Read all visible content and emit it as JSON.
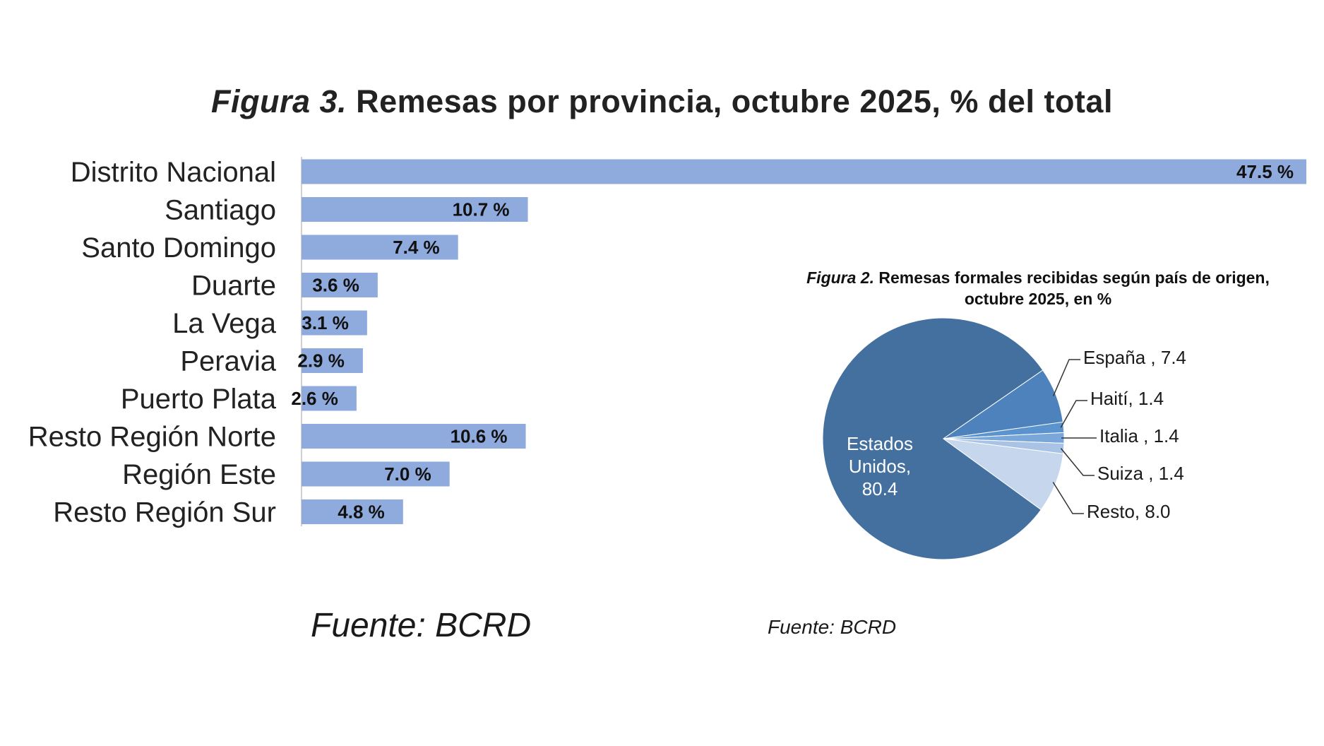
{
  "figure3": {
    "title_num": "Figura 3.",
    "title_rest": " Remesas por provincia, octubre 2025, % del total",
    "source": "Fuente: BCRD"
  },
  "figure2": {
    "title_num": "Figura 2.",
    "title_line1": " Remesas formales recibidas según país de origen,",
    "title_line2": "octubre 2025, en %",
    "source": "Fuente: BCRD"
  },
  "chart_data": [
    {
      "type": "bar",
      "orientation": "horizontal",
      "title": "Figura 3. Remesas por provincia, octubre 2025, % del total",
      "categories": [
        "Distrito Nacional",
        "Santiago",
        "Santo Domingo",
        "Duarte",
        "La Vega",
        "Peravia",
        "Puerto Plata",
        "Resto Región Norte",
        "Región Este",
        "Resto Región Sur"
      ],
      "values": [
        47.5,
        10.7,
        7.4,
        3.6,
        3.1,
        2.9,
        2.6,
        10.6,
        7.0,
        4.8
      ],
      "data_labels": [
        "47.5 %",
        "10.7 %",
        "7.4 %",
        "3.6 %",
        "3.1 %",
        "2.9 %",
        "2.6 %",
        "10.6 %",
        "7.0 %",
        "4.8 %"
      ],
      "bar_color": "#8faadc",
      "xlim": [
        0,
        47.5
      ],
      "grid": false
    },
    {
      "type": "pie",
      "title": "Figura 2. Remesas formales recibidas según país de origen, octubre 2025, en %",
      "labels": [
        "Estados Unidos",
        "España",
        "Haití",
        "Italia",
        "Suiza",
        "Resto"
      ],
      "display_labels": [
        [
          "Estados",
          "Unidos,",
          "80.4"
        ],
        [
          "España , 7.4"
        ],
        [
          "Haití, 1.4"
        ],
        [
          "Italia , 1.4"
        ],
        [
          "Suiza , 1.4"
        ],
        [
          "Resto, 8.0"
        ]
      ],
      "values": [
        80.4,
        7.4,
        1.4,
        1.4,
        1.4,
        8.0
      ],
      "colors": [
        "#44709f",
        "#4d82bd",
        "#5b93cf",
        "#7aa7d9",
        "#a9c3e6",
        "#c6d6ec"
      ]
    }
  ]
}
